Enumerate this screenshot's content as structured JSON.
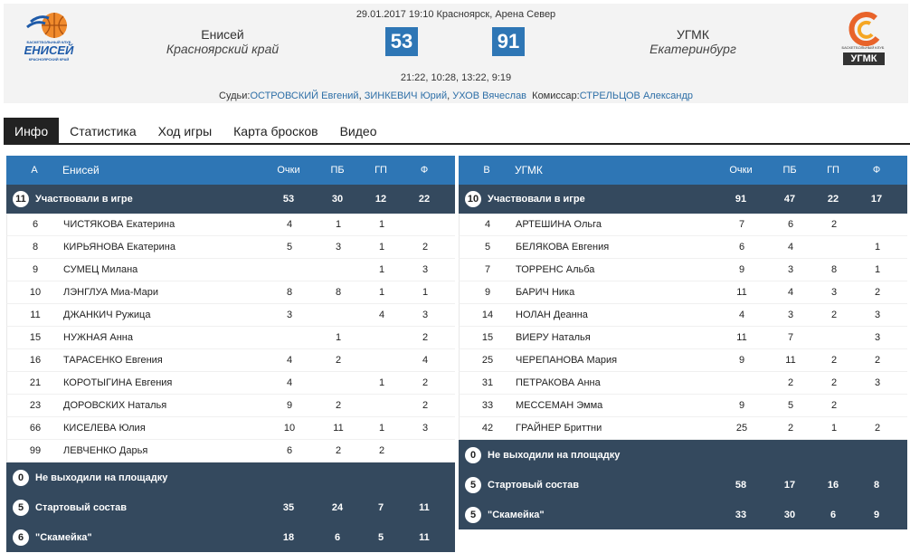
{
  "game": {
    "date_line": "29.01.2017 19:10 Красноярск, Арена Север",
    "periods": "21:22, 10:28, 13:22, 9:19",
    "referees_label": "Судьи:",
    "referees": [
      "ОСТРОВСКИЙ Евгений",
      "ЗИНКЕВИЧ Юрий",
      "УХОВ Вячеслав"
    ],
    "commissioner_label": "Комиссар:",
    "commissioner": "СТРЕЛЬЦОВ Александр"
  },
  "home": {
    "name": "Енисей",
    "region": "Красноярский край",
    "score": "53",
    "logo": {
      "caption_top": "БАСКЕТБОЛЬНЫЙ КЛУБ",
      "wordmark": "ЕНИСЕЙ",
      "caption_bottom": "КРАСНОЯРСКИЙ КРАЙ",
      "color": "#1e5aa8"
    }
  },
  "away": {
    "name": "УГМК",
    "region": "Екатеринбург",
    "score": "91",
    "logo": {
      "caption_top": "БАСКЕТБОЛЬНЫЙ КЛУБ",
      "wordmark": "УГМК",
      "color": "#e8632a"
    }
  },
  "tabs": [
    "Инфо",
    "Статистика",
    "Ход игры",
    "Карта бросков",
    "Видео"
  ],
  "colors": {
    "accent": "#2e76b5",
    "summary_bg": "#34495e",
    "tab_active": "#222222"
  },
  "left_table": {
    "header": {
      "letter": "А",
      "team": "Енисей",
      "pts": "Очки",
      "pb": "ПБ",
      "gp": "ГП",
      "f": "Ф"
    },
    "played": {
      "count": "11",
      "label": "Участвовали в игре",
      "pts": "53",
      "pb": "30",
      "gp": "12",
      "f": "22"
    },
    "players": [
      {
        "num": "6",
        "name": "ЧИСТЯКОВА Екатерина",
        "pts": "4",
        "pb": "1",
        "gp": "1",
        "f": ""
      },
      {
        "num": "8",
        "name": "КИРЬЯНОВА Екатерина",
        "pts": "5",
        "pb": "3",
        "gp": "1",
        "f": "2"
      },
      {
        "num": "9",
        "name": "СУМЕЦ Милана",
        "pts": "",
        "pb": "",
        "gp": "1",
        "f": "3"
      },
      {
        "num": "10",
        "name": "ЛЭНГЛУА Миа-Мари",
        "pts": "8",
        "pb": "8",
        "gp": "1",
        "f": "1"
      },
      {
        "num": "11",
        "name": "ДЖАНКИЧ Ружица",
        "pts": "3",
        "pb": "",
        "gp": "4",
        "f": "3"
      },
      {
        "num": "15",
        "name": "НУЖНАЯ Анна",
        "pts": "",
        "pb": "1",
        "gp": "",
        "f": "2"
      },
      {
        "num": "16",
        "name": "ТАРАСЕНКО Евгения",
        "pts": "4",
        "pb": "2",
        "gp": "",
        "f": "4"
      },
      {
        "num": "21",
        "name": "КОРОТЫГИНА Евгения",
        "pts": "4",
        "pb": "",
        "gp": "1",
        "f": "2"
      },
      {
        "num": "23",
        "name": "ДОРОВСКИХ Наталья",
        "pts": "9",
        "pb": "2",
        "gp": "",
        "f": "2"
      },
      {
        "num": "66",
        "name": "КИСЕЛЕВА Юлия",
        "pts": "10",
        "pb": "11",
        "gp": "1",
        "f": "3"
      },
      {
        "num": "99",
        "name": "ЛЕВЧЕНКО Дарья",
        "pts": "6",
        "pb": "2",
        "gp": "2",
        "f": ""
      }
    ],
    "not_played": {
      "count": "0",
      "label": "Не выходили на площадку"
    },
    "starters": {
      "count": "5",
      "label": "Стартовый состав",
      "pts": "35",
      "pb": "24",
      "gp": "7",
      "f": "11"
    },
    "bench": {
      "count": "6",
      "label": "\"Скамейка\"",
      "pts": "18",
      "pb": "6",
      "gp": "5",
      "f": "11"
    }
  },
  "right_table": {
    "header": {
      "letter": "В",
      "team": "УГМК",
      "pts": "Очки",
      "pb": "ПБ",
      "gp": "ГП",
      "f": "Ф"
    },
    "played": {
      "count": "10",
      "label": "Участвовали в игре",
      "pts": "91",
      "pb": "47",
      "gp": "22",
      "f": "17"
    },
    "players": [
      {
        "num": "4",
        "name": "АРТЕШИНА Ольга",
        "pts": "7",
        "pb": "6",
        "gp": "2",
        "f": ""
      },
      {
        "num": "5",
        "name": "БЕЛЯКОВА Евгения",
        "pts": "6",
        "pb": "4",
        "gp": "",
        "f": "1"
      },
      {
        "num": "7",
        "name": "ТОРРЕНС Альба",
        "pts": "9",
        "pb": "3",
        "gp": "8",
        "f": "1"
      },
      {
        "num": "9",
        "name": "БАРИЧ Ника",
        "pts": "11",
        "pb": "4",
        "gp": "3",
        "f": "2"
      },
      {
        "num": "14",
        "name": "НОЛАН Деанна",
        "pts": "4",
        "pb": "3",
        "gp": "2",
        "f": "3"
      },
      {
        "num": "15",
        "name": "ВИЕРУ Наталья",
        "pts": "11",
        "pb": "7",
        "gp": "",
        "f": "3"
      },
      {
        "num": "25",
        "name": "ЧЕРЕПАНОВА Мария",
        "pts": "9",
        "pb": "11",
        "gp": "2",
        "f": "2"
      },
      {
        "num": "31",
        "name": "ПЕТРАКОВА Анна",
        "pts": "",
        "pb": "2",
        "gp": "2",
        "f": "3"
      },
      {
        "num": "33",
        "name": "МЕССЕМАН Эмма",
        "pts": "9",
        "pb": "5",
        "gp": "2",
        "f": ""
      },
      {
        "num": "42",
        "name": "ГРАЙНЕР Бриттни",
        "pts": "25",
        "pb": "2",
        "gp": "1",
        "f": "2"
      }
    ],
    "not_played": {
      "count": "0",
      "label": "Не выходили на площадку"
    },
    "starters": {
      "count": "5",
      "label": "Стартовый состав",
      "pts": "58",
      "pb": "17",
      "gp": "16",
      "f": "8"
    },
    "bench": {
      "count": "5",
      "label": "\"Скамейка\"",
      "pts": "33",
      "pb": "30",
      "gp": "6",
      "f": "9"
    }
  }
}
